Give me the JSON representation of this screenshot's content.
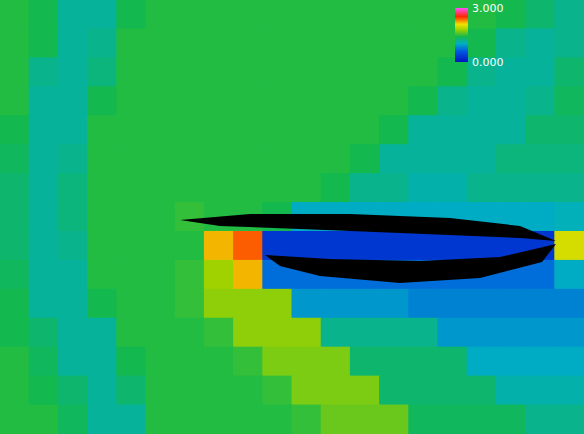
{
  "chart_data": {
    "type": "heatmap",
    "x": [
      0,
      1,
      2,
      3,
      4,
      5,
      6,
      7,
      8,
      9,
      10,
      11,
      12,
      13,
      14,
      15,
      16,
      17,
      18,
      19
    ],
    "y": [
      0,
      1,
      2,
      3,
      4,
      5,
      6,
      7,
      8,
      9,
      10,
      11,
      12,
      13,
      14
    ],
    "xlim": [
      -0.5,
      19.5
    ],
    "ylim": [
      -0.5,
      14.5
    ],
    "tick_labels": false,
    "cells": [
      [
        1.45,
        1.4,
        1.15,
        1.15,
        1.4,
        1.45,
        1.45,
        1.45,
        1.45,
        1.45,
        1.45,
        1.45,
        1.45,
        1.45,
        1.45,
        1.45,
        1.45,
        1.4,
        1.3,
        1.2
      ],
      [
        1.45,
        1.4,
        1.15,
        1.2,
        1.45,
        1.45,
        1.45,
        1.45,
        1.45,
        1.45,
        1.45,
        1.45,
        1.45,
        1.45,
        1.45,
        1.45,
        1.4,
        1.2,
        1.15,
        1.2
      ],
      [
        1.45,
        1.2,
        1.15,
        1.25,
        1.45,
        1.45,
        1.45,
        1.45,
        1.45,
        1.45,
        1.45,
        1.45,
        1.45,
        1.45,
        1.45,
        1.4,
        1.2,
        1.15,
        1.15,
        1.3
      ],
      [
        1.45,
        1.15,
        1.15,
        1.4,
        1.45,
        1.45,
        1.45,
        1.45,
        1.45,
        1.45,
        1.45,
        1.45,
        1.45,
        1.45,
        1.4,
        1.2,
        1.15,
        1.15,
        1.2,
        1.35
      ],
      [
        1.4,
        1.15,
        1.15,
        1.45,
        1.45,
        1.45,
        1.45,
        1.45,
        1.45,
        1.45,
        1.45,
        1.45,
        1.45,
        1.4,
        1.15,
        1.15,
        1.15,
        1.15,
        1.3,
        1.3
      ],
      [
        1.35,
        1.15,
        1.2,
        1.45,
        1.45,
        1.45,
        1.45,
        1.45,
        1.45,
        1.45,
        1.45,
        1.45,
        1.4,
        1.15,
        1.15,
        1.15,
        1.15,
        1.25,
        1.25,
        1.25
      ],
      [
        1.3,
        1.15,
        1.25,
        1.45,
        1.45,
        1.45,
        1.45,
        1.45,
        1.45,
        1.45,
        1.45,
        1.4,
        1.2,
        1.2,
        1.1,
        1.1,
        1.2,
        1.2,
        1.2,
        1.2
      ],
      [
        1.3,
        1.15,
        1.25,
        1.45,
        1.45,
        1.45,
        1.5,
        1.45,
        1.45,
        1.4,
        1.0,
        1.0,
        1.0,
        1.0,
        1.0,
        1.0,
        1.0,
        1.0,
        1.0,
        1.05
      ],
      [
        1.3,
        1.15,
        1.2,
        1.45,
        1.45,
        1.45,
        1.45,
        2.2,
        2.4,
        0.3,
        0.3,
        0.3,
        0.3,
        0.3,
        0.3,
        0.3,
        0.3,
        0.3,
        0.3,
        2.0
      ],
      [
        1.35,
        1.15,
        1.15,
        1.45,
        1.45,
        1.45,
        1.5,
        1.8,
        2.2,
        0.7,
        0.7,
        0.7,
        0.7,
        0.7,
        0.7,
        0.7,
        0.7,
        0.7,
        0.7,
        1.0
      ],
      [
        1.4,
        1.15,
        1.15,
        1.4,
        1.45,
        1.45,
        1.5,
        1.75,
        1.75,
        1.75,
        0.9,
        0.9,
        0.9,
        0.9,
        0.8,
        0.8,
        0.8,
        0.8,
        0.8,
        0.8
      ],
      [
        1.4,
        1.3,
        1.15,
        1.15,
        1.45,
        1.45,
        1.45,
        1.5,
        1.75,
        1.75,
        1.75,
        1.2,
        1.2,
        1.2,
        1.2,
        0.9,
        0.9,
        0.9,
        0.9,
        0.9
      ],
      [
        1.45,
        1.35,
        1.15,
        1.15,
        1.4,
        1.45,
        1.45,
        1.45,
        1.5,
        1.7,
        1.7,
        1.7,
        1.3,
        1.3,
        1.3,
        1.3,
        1.0,
        1.0,
        1.0,
        1.0
      ],
      [
        1.45,
        1.4,
        1.3,
        1.15,
        1.3,
        1.45,
        1.45,
        1.45,
        1.45,
        1.5,
        1.7,
        1.7,
        1.7,
        1.3,
        1.3,
        1.3,
        1.3,
        1.1,
        1.1,
        1.1
      ],
      [
        1.45,
        1.45,
        1.35,
        1.15,
        1.15,
        1.45,
        1.45,
        1.45,
        1.45,
        1.45,
        1.5,
        1.65,
        1.65,
        1.65,
        1.35,
        1.35,
        1.35,
        1.35,
        1.2,
        1.2
      ]
    ],
    "colorbar": {
      "range": [
        0,
        3
      ],
      "ticks": [
        {
          "value": 0,
          "label": "0.000"
        },
        {
          "value": 3,
          "label": "3.000"
        }
      ]
    }
  }
}
